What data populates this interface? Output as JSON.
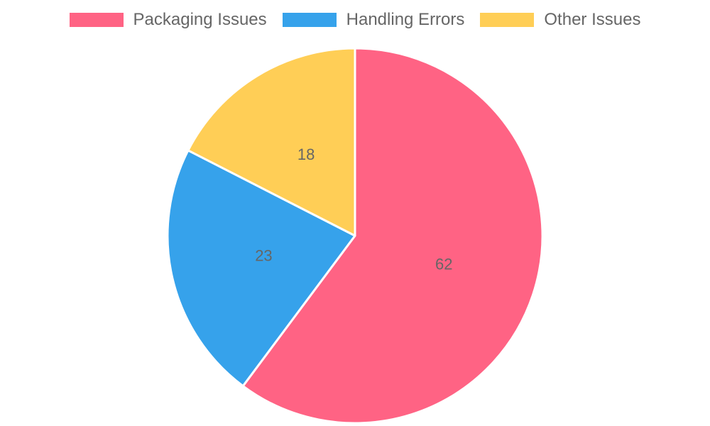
{
  "chart_data": {
    "type": "pie",
    "categories": [
      "Packaging Issues",
      "Handling Errors",
      "Other Issues"
    ],
    "values": [
      62,
      23,
      18
    ],
    "colors": [
      "#ff6384",
      "#36a2eb",
      "#ffce56"
    ],
    "legend_position": "top",
    "title": ""
  }
}
